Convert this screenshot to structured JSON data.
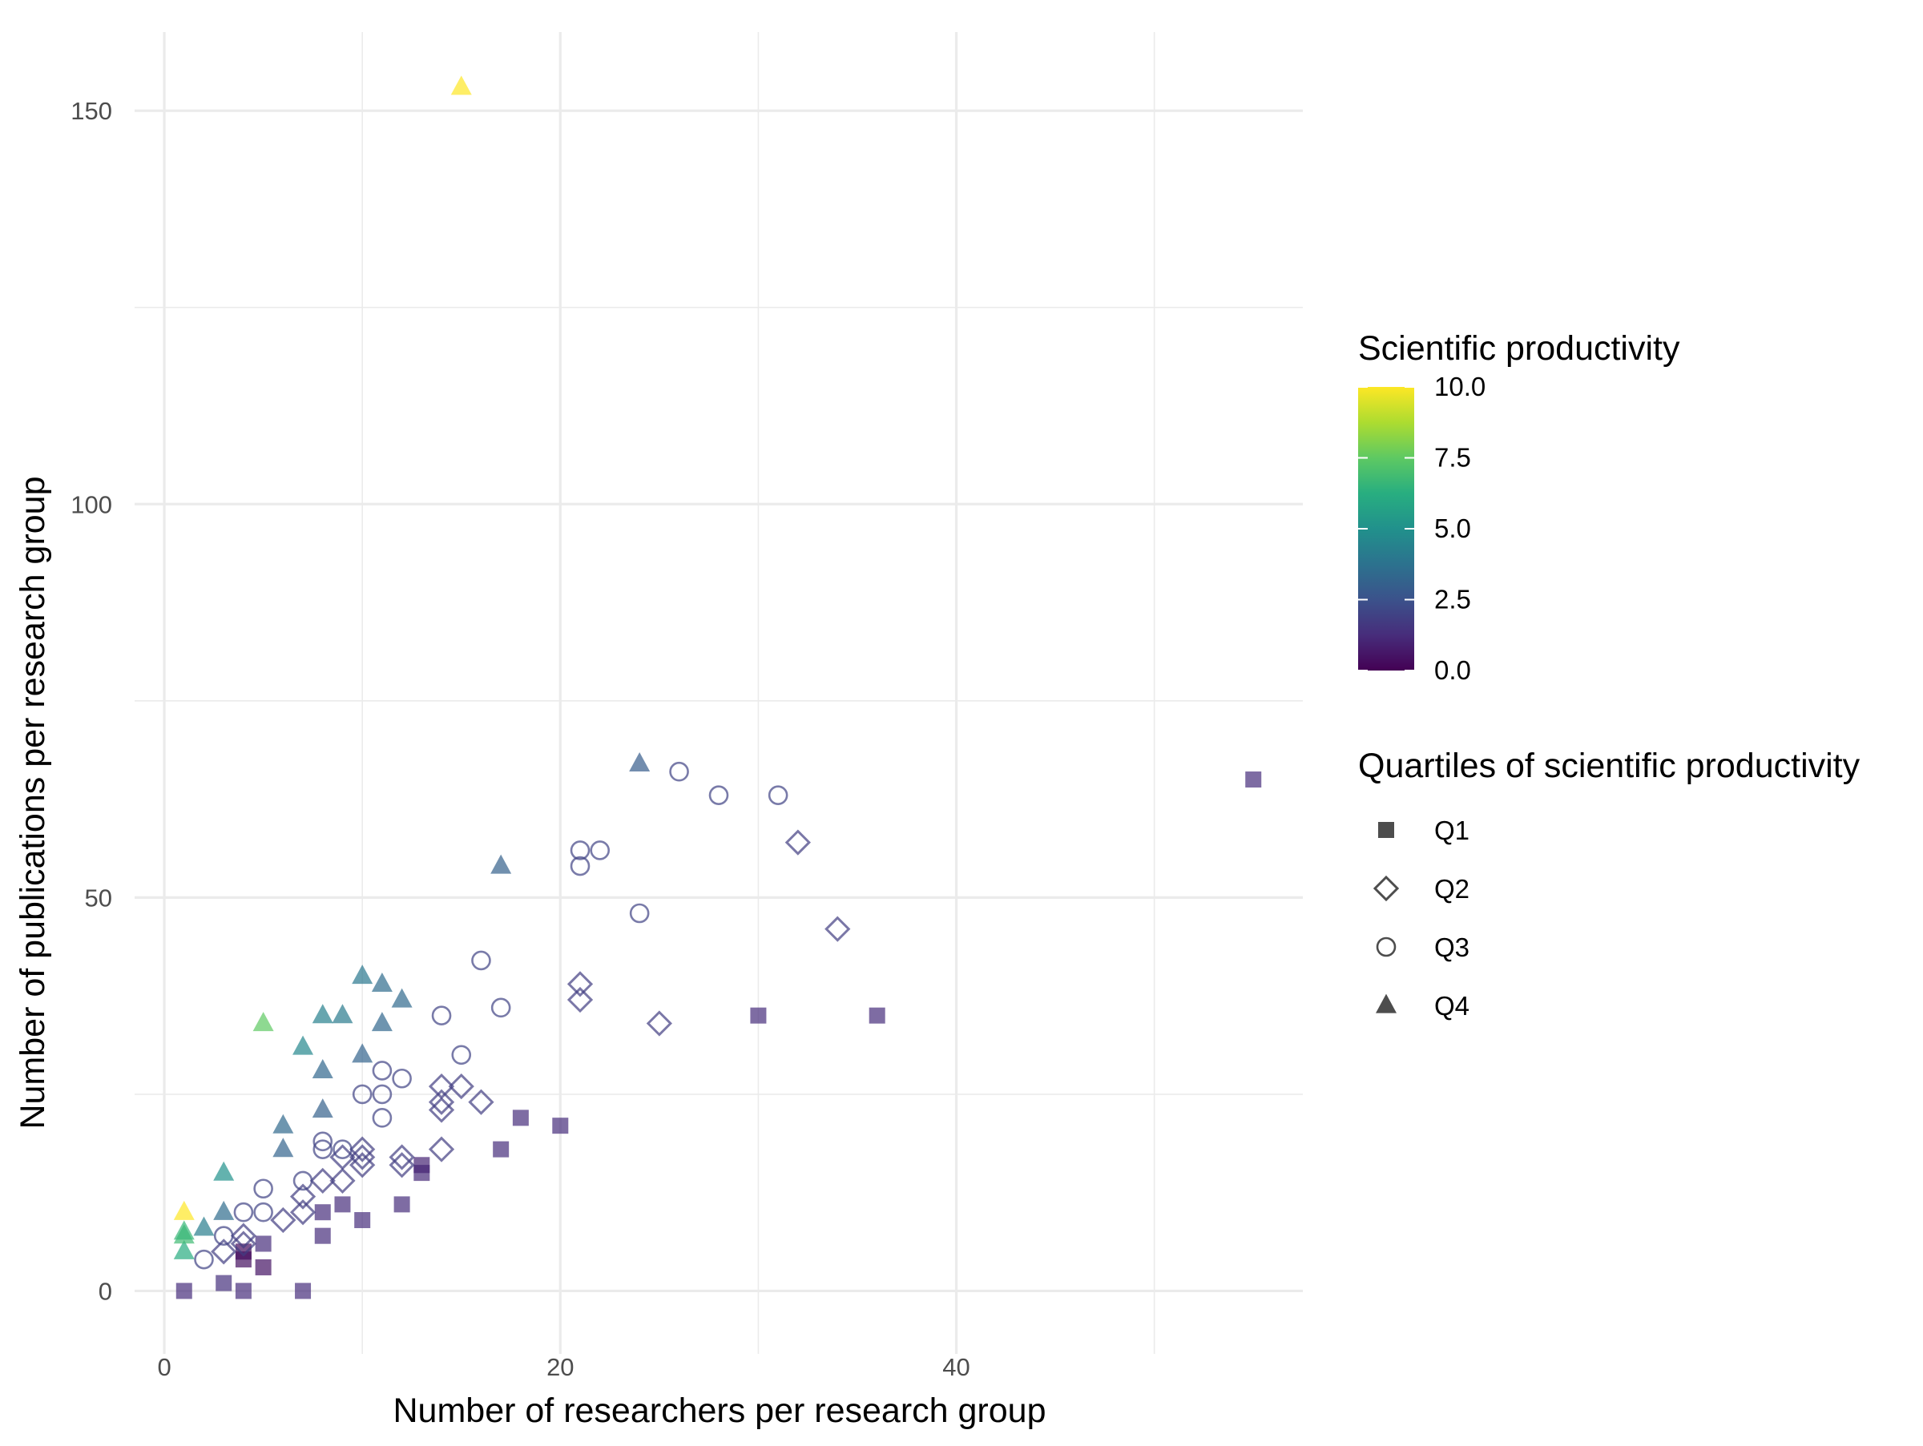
{
  "chart_data": {
    "type": "scatter",
    "xlabel": "Number of researchers per research group",
    "ylabel": "Number of publications per research group",
    "xlim": [
      -1.5,
      57.5
    ],
    "ylim": [
      -8,
      160
    ],
    "x_ticks": [
      0,
      20,
      40
    ],
    "y_ticks": [
      0,
      50,
      100,
      150
    ],
    "grid": true,
    "colorbar": {
      "title": "Scientific productivity",
      "range": [
        0,
        10
      ],
      "ticks": [
        "0.0",
        "2.5",
        "5.0",
        "7.5",
        "10.0"
      ],
      "palette": [
        "#440154",
        "#472d7b",
        "#3b528b",
        "#2c728e",
        "#21918c",
        "#28ae80",
        "#5ec962",
        "#addc30",
        "#fde725"
      ]
    },
    "shape_legend": {
      "title": "Quartiles of scientific productivity",
      "entries": [
        {
          "label": "Q1",
          "shape": "filled-square"
        },
        {
          "label": "Q2",
          "shape": "open-diamond"
        },
        {
          "label": "Q3",
          "shape": "open-circle"
        },
        {
          "label": "Q4",
          "shape": "filled-triangle"
        }
      ]
    },
    "series": [
      {
        "quartile": "Q1",
        "points": [
          {
            "x": 1,
            "y": 0,
            "p": 1.3
          },
          {
            "x": 3,
            "y": 1,
            "p": 1.4
          },
          {
            "x": 4,
            "y": 0,
            "p": 1.3
          },
          {
            "x": 4,
            "y": 4,
            "p": 0.4
          },
          {
            "x": 4,
            "y": 5,
            "p": 0.3
          },
          {
            "x": 5,
            "y": 3,
            "p": 0.5
          },
          {
            "x": 5,
            "y": 6,
            "p": 1.3
          },
          {
            "x": 7,
            "y": 0,
            "p": 1.3
          },
          {
            "x": 8,
            "y": 7,
            "p": 1.3
          },
          {
            "x": 8,
            "y": 10,
            "p": 1.3
          },
          {
            "x": 9,
            "y": 11,
            "p": 1.3
          },
          {
            "x": 10,
            "y": 9,
            "p": 1.3
          },
          {
            "x": 12,
            "y": 11,
            "p": 1.3
          },
          {
            "x": 13,
            "y": 15,
            "p": 1.2
          },
          {
            "x": 13,
            "y": 16,
            "p": 1.0
          },
          {
            "x": 17,
            "y": 18,
            "p": 1.3
          },
          {
            "x": 18,
            "y": 22,
            "p": 1.3
          },
          {
            "x": 20,
            "y": 21,
            "p": 1.3
          },
          {
            "x": 30,
            "y": 35,
            "p": 1.3
          },
          {
            "x": 36,
            "y": 35,
            "p": 1.3
          },
          {
            "x": 55,
            "y": 65,
            "p": 1.3
          }
        ]
      },
      {
        "quartile": "Q2",
        "points": [
          {
            "x": 3,
            "y": 5,
            "p": 1.8
          },
          {
            "x": 4,
            "y": 7,
            "p": 1.8
          },
          {
            "x": 4,
            "y": 6,
            "p": 1.8
          },
          {
            "x": 6,
            "y": 9,
            "p": 1.8
          },
          {
            "x": 7,
            "y": 10,
            "p": 1.8
          },
          {
            "x": 7,
            "y": 12,
            "p": 1.8
          },
          {
            "x": 8,
            "y": 14,
            "p": 1.8
          },
          {
            "x": 9,
            "y": 14,
            "p": 1.8
          },
          {
            "x": 9,
            "y": 17,
            "p": 1.8
          },
          {
            "x": 10,
            "y": 16,
            "p": 1.8
          },
          {
            "x": 10,
            "y": 17,
            "p": 1.8
          },
          {
            "x": 10,
            "y": 18,
            "p": 1.8
          },
          {
            "x": 12,
            "y": 16,
            "p": 1.8
          },
          {
            "x": 12,
            "y": 17,
            "p": 1.8
          },
          {
            "x": 14,
            "y": 18,
            "p": 1.8
          },
          {
            "x": 14,
            "y": 23,
            "p": 1.8
          },
          {
            "x": 14,
            "y": 24,
            "p": 1.8
          },
          {
            "x": 14,
            "y": 26,
            "p": 1.8
          },
          {
            "x": 15,
            "y": 26,
            "p": 1.8
          },
          {
            "x": 16,
            "y": 24,
            "p": 1.8
          },
          {
            "x": 21,
            "y": 37,
            "p": 1.8
          },
          {
            "x": 21,
            "y": 39,
            "p": 1.8
          },
          {
            "x": 25,
            "y": 34,
            "p": 1.8
          },
          {
            "x": 32,
            "y": 57,
            "p": 1.8
          },
          {
            "x": 34,
            "y": 46,
            "p": 1.8
          }
        ]
      },
      {
        "quartile": "Q3",
        "points": [
          {
            "x": 2,
            "y": 4,
            "p": 2.0
          },
          {
            "x": 3,
            "y": 7,
            "p": 2.0
          },
          {
            "x": 4,
            "y": 10,
            "p": 2.0
          },
          {
            "x": 5,
            "y": 10,
            "p": 2.0
          },
          {
            "x": 5,
            "y": 13,
            "p": 2.0
          },
          {
            "x": 7,
            "y": 14,
            "p": 2.0
          },
          {
            "x": 8,
            "y": 18,
            "p": 2.0
          },
          {
            "x": 8,
            "y": 19,
            "p": 2.0
          },
          {
            "x": 9,
            "y": 18,
            "p": 2.0
          },
          {
            "x": 10,
            "y": 25,
            "p": 2.0
          },
          {
            "x": 11,
            "y": 22,
            "p": 2.0
          },
          {
            "x": 11,
            "y": 25,
            "p": 2.0
          },
          {
            "x": 11,
            "y": 28,
            "p": 2.0
          },
          {
            "x": 12,
            "y": 27,
            "p": 2.0
          },
          {
            "x": 14,
            "y": 35,
            "p": 2.0
          },
          {
            "x": 15,
            "y": 30,
            "p": 2.0
          },
          {
            "x": 16,
            "y": 42,
            "p": 2.0
          },
          {
            "x": 17,
            "y": 36,
            "p": 2.0
          },
          {
            "x": 21,
            "y": 54,
            "p": 2.0
          },
          {
            "x": 21,
            "y": 56,
            "p": 2.0
          },
          {
            "x": 22,
            "y": 56,
            "p": 2.0
          },
          {
            "x": 24,
            "y": 48,
            "p": 2.0
          },
          {
            "x": 26,
            "y": 66,
            "p": 2.0
          },
          {
            "x": 28,
            "y": 63,
            "p": 2.0
          },
          {
            "x": 31,
            "y": 63,
            "p": 2.0
          }
        ]
      },
      {
        "quartile": "Q4",
        "points": [
          {
            "x": 1,
            "y": 5,
            "p": 6.2
          },
          {
            "x": 1,
            "y": 7,
            "p": 6.8
          },
          {
            "x": 1,
            "y": 7.5,
            "p": 6.6
          },
          {
            "x": 1,
            "y": 10,
            "p": 10.0
          },
          {
            "x": 2,
            "y": 8,
            "p": 4.2
          },
          {
            "x": 3,
            "y": 10,
            "p": 3.5
          },
          {
            "x": 3,
            "y": 15,
            "p": 5.0
          },
          {
            "x": 5,
            "y": 34,
            "p": 7.5
          },
          {
            "x": 6,
            "y": 18,
            "p": 3.2
          },
          {
            "x": 6,
            "y": 21,
            "p": 3.4
          },
          {
            "x": 7,
            "y": 31,
            "p": 4.6
          },
          {
            "x": 8,
            "y": 23,
            "p": 3.1
          },
          {
            "x": 8,
            "y": 28,
            "p": 3.3
          },
          {
            "x": 8,
            "y": 35,
            "p": 4.3
          },
          {
            "x": 9,
            "y": 35,
            "p": 4.1
          },
          {
            "x": 10,
            "y": 30,
            "p": 3.2
          },
          {
            "x": 10,
            "y": 40,
            "p": 4.0
          },
          {
            "x": 11,
            "y": 34,
            "p": 3.3
          },
          {
            "x": 11,
            "y": 39,
            "p": 3.5
          },
          {
            "x": 12,
            "y": 37,
            "p": 3.4
          },
          {
            "x": 15,
            "y": 153,
            "p": 10.0
          },
          {
            "x": 17,
            "y": 54,
            "p": 3.1
          },
          {
            "x": 24,
            "y": 67,
            "p": 2.9
          }
        ]
      }
    ]
  }
}
